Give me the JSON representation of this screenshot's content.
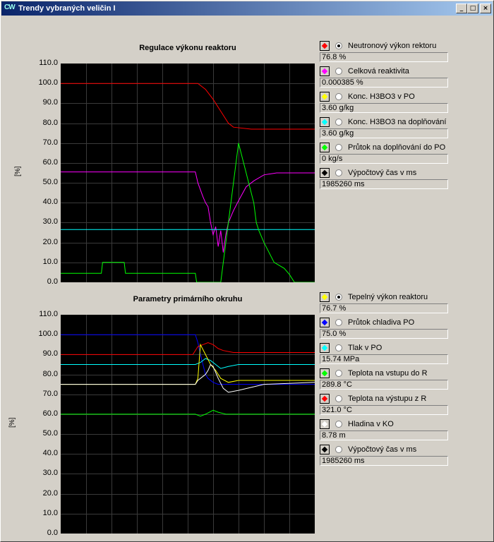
{
  "window": {
    "title": "Trendy vybraných veličin I",
    "app_icon": "CW",
    "buttons": [
      {
        "name": "minimize-button",
        "glyph": "_"
      },
      {
        "name": "maximize-button",
        "glyph": "□"
      },
      {
        "name": "close-button",
        "glyph": "×"
      }
    ]
  },
  "top_panel": {
    "title": "Regulace výkonu reaktoru",
    "ylabel": "[%]",
    "yticks": [
      "110.0",
      "100.0",
      "90.0",
      "80.0",
      "70.0",
      "60.0",
      "50.0",
      "40.0",
      "30.0",
      "20.0",
      "10.0",
      "0.0"
    ],
    "legend": [
      {
        "label": "Neutronový výkon rektoru",
        "value": "76.8 %",
        "color": "#ff0000",
        "selected": true
      },
      {
        "label": "Celková reaktivita",
        "value": "0.000385 %",
        "color": "#ff00ff",
        "selected": false
      },
      {
        "label": "Konc. H3BO3 v PO",
        "value": "3.60 g/kg",
        "color": "#ffff00",
        "selected": false
      },
      {
        "label": "Konc. H3BO3 na doplňování",
        "value": "3.60 g/kg",
        "color": "#00ffff",
        "selected": false
      },
      {
        "label": "Průtok na doplňování do PO",
        "value": "0 kg/s",
        "color": "#00ff00",
        "selected": false
      },
      {
        "label": "Výpočtový čas v ms",
        "value": "1985260 ms",
        "color": "#000000",
        "selected": false
      }
    ]
  },
  "bottom_panel": {
    "title": "Parametry primárního okruhu",
    "ylabel": "[%]",
    "yticks": [
      "110.0",
      "100.0",
      "90.0",
      "80.0",
      "70.0",
      "60.0",
      "50.0",
      "40.0",
      "30.0",
      "20.0",
      "10.0",
      "0.0"
    ],
    "legend": [
      {
        "label": "Tepelný výkon reaktoru",
        "value": "76.7 %",
        "color": "#ffff00",
        "selected": true
      },
      {
        "label": "Průtok chladiva PO",
        "value": "75.0 %",
        "color": "#0000ff",
        "selected": false
      },
      {
        "label": "Tlak v PO",
        "value": "15.74 MPa",
        "color": "#00ffff",
        "selected": false
      },
      {
        "label": "Teplota na vstupu do R",
        "value": "289.8 °C",
        "color": "#00ff00",
        "selected": false
      },
      {
        "label": "Teplota na výstupu z R",
        "value": "321.0 °C",
        "color": "#ff0000",
        "selected": false
      },
      {
        "label": "Hladina v KO",
        "value": "8.78 m",
        "color": "#ffffff",
        "selected": false
      },
      {
        "label": "Výpočtový čas v ms",
        "value": "1985260 ms",
        "color": "#000000",
        "selected": false
      }
    ]
  },
  "chart_data": [
    {
      "type": "line",
      "title": "Regulace výkonu reaktoru",
      "ylabel": "[%]",
      "ylim": [
        0,
        110
      ],
      "xlim": [
        0,
        100
      ],
      "grid": true,
      "series": [
        {
          "name": "Neutronový výkon rektoru",
          "color": "#ff0000",
          "points": [
            [
              0,
              100
            ],
            [
              54,
              100
            ],
            [
              57,
              97
            ],
            [
              60,
              92
            ],
            [
              63,
              86
            ],
            [
              66,
              80
            ],
            [
              68,
              78
            ],
            [
              75,
              77
            ],
            [
              100,
              77
            ]
          ]
        },
        {
          "name": "Celková reaktivita",
          "color": "#ff00ff",
          "points": [
            [
              0,
              55.5
            ],
            [
              53,
              55.5
            ],
            [
              54,
              50
            ],
            [
              56,
              43
            ],
            [
              57,
              40
            ],
            [
              58,
              38
            ],
            [
              59,
              30
            ],
            [
              60,
              24
            ],
            [
              61,
              28
            ],
            [
              62,
              18
            ],
            [
              63,
              26
            ],
            [
              64,
              15
            ],
            [
              65,
              24
            ],
            [
              66,
              30
            ],
            [
              68,
              36
            ],
            [
              70,
              41
            ],
            [
              73,
              48
            ],
            [
              76,
              51
            ],
            [
              80,
              54
            ],
            [
              85,
              55
            ],
            [
              100,
              55
            ]
          ]
        },
        {
          "name": "Konc. H3BO3 na doplňování",
          "color": "#00ffff",
          "points": [
            [
              0,
              26.5
            ],
            [
              100,
              26.5
            ]
          ]
        },
        {
          "name": "Průtok na doplňování do PO",
          "color": "#00ff00",
          "points": [
            [
              0,
              4.5
            ],
            [
              16,
              4.5
            ],
            [
              16.5,
              10
            ],
            [
              25,
              10
            ],
            [
              25.5,
              4.5
            ],
            [
              53,
              4.5
            ],
            [
              53.5,
              0
            ],
            [
              63,
              0
            ],
            [
              64,
              10
            ],
            [
              66,
              30
            ],
            [
              68,
              50
            ],
            [
              69,
              60
            ],
            [
              70,
              70
            ],
            [
              72,
              60
            ],
            [
              74,
              50
            ],
            [
              76,
              40
            ],
            [
              77,
              30
            ],
            [
              78,
              26
            ],
            [
              80,
              20
            ],
            [
              82,
              15
            ],
            [
              84,
              10
            ],
            [
              88,
              7
            ],
            [
              90,
              4
            ],
            [
              92,
              0
            ],
            [
              100,
              0
            ]
          ]
        }
      ]
    },
    {
      "type": "line",
      "title": "Parametry primárního okruhu",
      "ylabel": "[%]",
      "ylim": [
        0,
        110
      ],
      "xlim": [
        0,
        100
      ],
      "grid": true,
      "series": [
        {
          "name": "Průtok chladiva PO",
          "color": "#0000ff",
          "points": [
            [
              0,
              100
            ],
            [
              53,
              100
            ],
            [
              54,
              96
            ],
            [
              55,
              90
            ],
            [
              56,
              85
            ],
            [
              57,
              80
            ],
            [
              58,
              78
            ],
            [
              60,
              76
            ],
            [
              62,
              75
            ],
            [
              100,
              75
            ]
          ]
        },
        {
          "name": "Teplota na výstupu z R",
          "color": "#ff0000",
          "points": [
            [
              0,
              90
            ],
            [
              52,
              90
            ],
            [
              54,
              94
            ],
            [
              56,
              95
            ],
            [
              58,
              96
            ],
            [
              60,
              95
            ],
            [
              62,
              93
            ],
            [
              64,
              92
            ],
            [
              68,
              91
            ],
            [
              100,
              91
            ]
          ]
        },
        {
          "name": "Tlak v PO",
          "color": "#00ffff",
          "points": [
            [
              0,
              85
            ],
            [
              53,
              85
            ],
            [
              55,
              86
            ],
            [
              57,
              88
            ],
            [
              59,
              87
            ],
            [
              61,
              85
            ],
            [
              63,
              83
            ],
            [
              66,
              84
            ],
            [
              70,
              85
            ],
            [
              100,
              85
            ]
          ]
        },
        {
          "name": "Tepelný výkon reaktoru",
          "color": "#ffff00",
          "points": [
            [
              0,
              75
            ],
            [
              53,
              75
            ],
            [
              54,
              78
            ],
            [
              55,
              95
            ],
            [
              57,
              90
            ],
            [
              59,
              85
            ],
            [
              61,
              82
            ],
            [
              63,
              78
            ],
            [
              66,
              76
            ],
            [
              70,
              77
            ],
            [
              80,
              77
            ],
            [
              100,
              77
            ]
          ]
        },
        {
          "name": "Hladina v KO",
          "color": "#ffffff",
          "points": [
            [
              0,
              75
            ],
            [
              53,
              75
            ],
            [
              54,
              77
            ],
            [
              55,
              78
            ],
            [
              57,
              80
            ],
            [
              58,
              82
            ],
            [
              59,
              85
            ],
            [
              60,
              84
            ],
            [
              62,
              78
            ],
            [
              64,
              73
            ],
            [
              66,
              71
            ],
            [
              70,
              72
            ],
            [
              80,
              75
            ],
            [
              100,
              76
            ]
          ]
        },
        {
          "name": "Teplota na vstupu do R",
          "color": "#00ff00",
          "points": [
            [
              0,
              60
            ],
            [
              53,
              60
            ],
            [
              55,
              59
            ],
            [
              57,
              60
            ],
            [
              60,
              62
            ],
            [
              62,
              61
            ],
            [
              65,
              60
            ],
            [
              100,
              60
            ]
          ]
        }
      ]
    }
  ]
}
